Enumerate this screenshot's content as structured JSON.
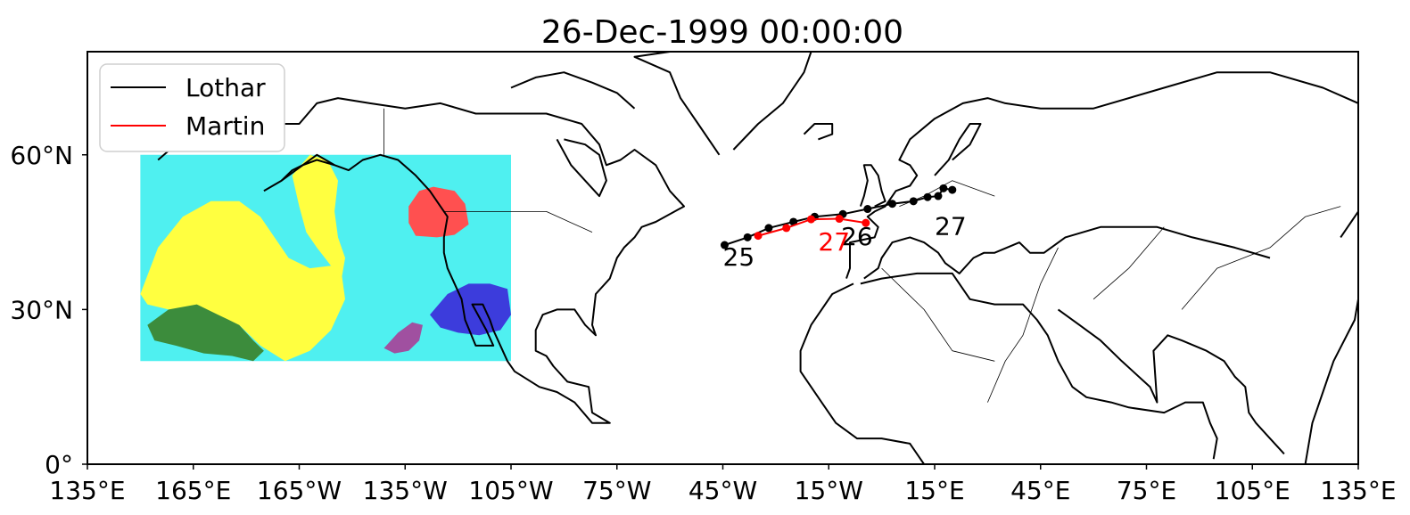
{
  "title": "26-Dec-1999 00:00:00",
  "colors": {
    "lothar": "#000000",
    "martin": "#ff0000",
    "field_background": "#4ff0f0",
    "field_yellow": "#ffff40",
    "field_green": "#3c8c3c",
    "field_red": "#ff5050",
    "field_blue": "#3c3cdc",
    "field_purple": "#a050a0"
  },
  "axes": {
    "lon_range": [
      135,
      495
    ],
    "lat_range": [
      0,
      80
    ],
    "x_ticks": [
      {
        "lon": 135,
        "label": "135°E"
      },
      {
        "lon": 165,
        "label": "165°E"
      },
      {
        "lon": 195,
        "label": "165°W"
      },
      {
        "lon": 225,
        "label": "135°W"
      },
      {
        "lon": 255,
        "label": "105°W"
      },
      {
        "lon": 285,
        "label": "75°W"
      },
      {
        "lon": 315,
        "label": "45°W"
      },
      {
        "lon": 345,
        "label": "15°W"
      },
      {
        "lon": 375,
        "label": "15°E"
      },
      {
        "lon": 405,
        "label": "45°E"
      },
      {
        "lon": 435,
        "label": "75°E"
      },
      {
        "lon": 465,
        "label": "105°E"
      },
      {
        "lon": 495,
        "label": "135°E"
      }
    ],
    "y_ticks": [
      {
        "lat": 0,
        "label": "0°"
      },
      {
        "lat": 30,
        "label": "30°N"
      },
      {
        "lat": 60,
        "label": "60°N"
      }
    ]
  },
  "legend": {
    "position": "top-left",
    "entries": [
      {
        "name": "Lothar",
        "color": "#000000"
      },
      {
        "name": "Martin",
        "color": "#ff0000"
      }
    ]
  },
  "chart_data": {
    "type": "map",
    "title": "26-Dec-1999 00:00:00",
    "projection": "plate-carree",
    "xlim_lon": [
      135,
      495
    ],
    "ylim_lat": [
      0,
      80
    ],
    "tracks": [
      {
        "name": "Lothar",
        "color": "#000000",
        "points": [
          [
            -44.5,
            42.5
          ],
          [
            -38.0,
            44.0
          ],
          [
            -32.0,
            45.8
          ],
          [
            -25.0,
            47.0
          ],
          [
            -19.0,
            48.0
          ],
          [
            -11.0,
            48.5
          ],
          [
            -4.0,
            49.5
          ],
          [
            3.0,
            50.5
          ],
          [
            9.0,
            51.0
          ],
          [
            13.0,
            51.8
          ],
          [
            16.0,
            52.0
          ],
          [
            17.5,
            53.5
          ],
          [
            20.0,
            53.2
          ]
        ],
        "day_labels": [
          {
            "text": "25",
            "lon": -45.0,
            "lat": 38.5
          },
          {
            "text": "26",
            "lon": -11.5,
            "lat": 42.5
          },
          {
            "text": "27",
            "lon": 15.0,
            "lat": 44.5
          }
        ]
      },
      {
        "name": "Martin",
        "color": "#ff0000",
        "points": [
          [
            -35.0,
            44.3
          ],
          [
            -27.0,
            45.8
          ],
          [
            -20.0,
            47.5
          ],
          [
            -12.0,
            47.6
          ],
          [
            -4.5,
            46.8
          ]
        ],
        "day_labels": [
          {
            "text": "27",
            "lon": -18.0,
            "lat": 41.5
          }
        ]
      }
    ],
    "field": {
      "lon_range": [
        150,
        255
      ],
      "lat_range": [
        20,
        60
      ],
      "background_color": "#4ff0f0",
      "regions": [
        {
          "color": "#ffff40",
          "polygon": [
            [
              150,
              33
            ],
            [
              155,
              42
            ],
            [
              162,
              48
            ],
            [
              170,
              51
            ],
            [
              178,
              51
            ],
            [
              184,
              48
            ],
            [
              188,
              44
            ],
            [
              192,
              40
            ],
            [
              198,
              38
            ],
            [
              204,
              38.5
            ],
            [
              207,
              37
            ],
            [
              208,
              32
            ],
            [
              204,
              26
            ],
            [
              198,
              22
            ],
            [
              191,
              20
            ],
            [
              184,
              23
            ],
            [
              178,
              27
            ],
            [
              172,
              28
            ],
            [
              165,
              29
            ],
            [
              158,
              30
            ],
            [
              152,
              31
            ]
          ]
        },
        {
          "color": "#ffff40",
          "polygon": [
            [
              193,
              56
            ],
            [
              198,
              60
            ],
            [
              203,
              59
            ],
            [
              206,
              55
            ],
            [
              205,
              49
            ],
            [
              206,
              44
            ],
            [
              208,
              40
            ],
            [
              207,
              36
            ],
            [
              204,
              38.5
            ],
            [
              200,
              42
            ],
            [
              197,
              45
            ],
            [
              195,
              50
            ]
          ]
        },
        {
          "color": "#3c8c3c",
          "polygon": [
            [
              152,
              27
            ],
            [
              158,
              30
            ],
            [
              166,
              31
            ],
            [
              172,
              29
            ],
            [
              178,
              27
            ],
            [
              182,
              24
            ],
            [
              185,
              22
            ],
            [
              182,
              20
            ],
            [
              176,
              21
            ],
            [
              168,
              21.5
            ],
            [
              160,
              23
            ],
            [
              154,
              24
            ]
          ]
        },
        {
          "color": "#ff5050",
          "polygon": [
            [
              226,
              50
            ],
            [
              229,
              53
            ],
            [
              233,
              53.8
            ],
            [
              239,
              53
            ],
            [
              242,
              50.5
            ],
            [
              243,
              46.5
            ],
            [
              239,
              44.5
            ],
            [
              234,
              44
            ],
            [
              228,
              44.3
            ],
            [
              226,
              46.8
            ]
          ]
        },
        {
          "color": "#3c3cdc",
          "polygon": [
            [
              232,
              29
            ],
            [
              237,
              33
            ],
            [
              243,
              35
            ],
            [
              249,
              35
            ],
            [
              254,
              34
            ],
            [
              255,
              29
            ],
            [
              252,
              26
            ],
            [
              246,
              25
            ],
            [
              240,
              25.5
            ],
            [
              235,
              26.5
            ]
          ]
        },
        {
          "color": "#a050a0",
          "polygon": [
            [
              219,
              22.5
            ],
            [
              223,
              25.5
            ],
            [
              227,
              27.5
            ],
            [
              230,
              27
            ],
            [
              229,
              24
            ],
            [
              226,
              22
            ],
            [
              222,
              21.5
            ]
          ]
        }
      ]
    }
  }
}
